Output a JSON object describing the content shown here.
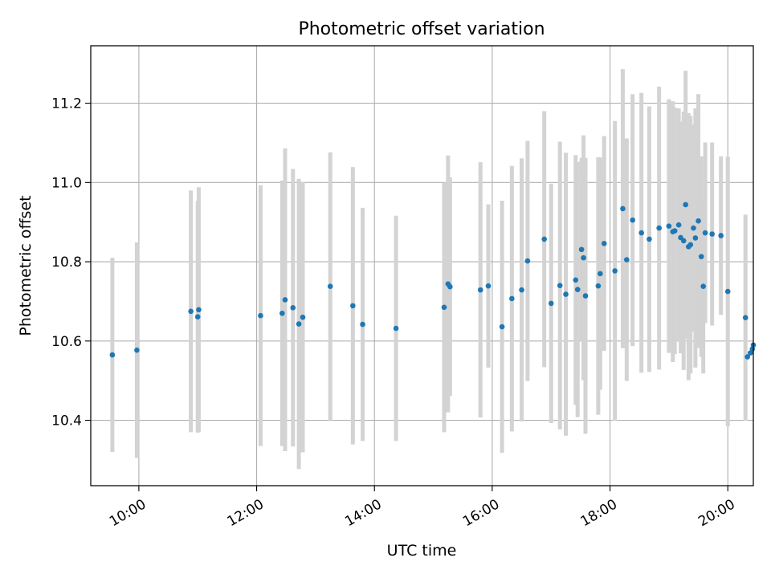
{
  "chart_data": {
    "type": "scatter",
    "title": "Photometric offset variation",
    "xlabel": "UTC time",
    "ylabel": "Photometric offset",
    "xlim": [
      "09:11",
      "20:26"
    ],
    "ylim": [
      10.235,
      11.345
    ],
    "grid": true,
    "x_ticks": [
      "10:00",
      "12:00",
      "14:00",
      "16:00",
      "18:00",
      "20:00"
    ],
    "y_ticks": [
      "10.4",
      "10.6",
      "10.8",
      "11.0",
      "11.2"
    ],
    "colors": {
      "points": "#1f77b4",
      "errorbars": "#d3d3d3",
      "grid": "#b0b0b0"
    },
    "series": [
      {
        "x": [
          "09:33",
          "09:58",
          "10:53",
          "11:00",
          "11:01",
          "12:04",
          "12:26",
          "12:29",
          "12:37",
          "12:43",
          "12:47",
          "13:15",
          "13:38",
          "13:48",
          "14:22",
          "15:11",
          "15:15",
          "15:17",
          "15:48",
          "15:56",
          "16:10",
          "16:20",
          "16:30",
          "16:36",
          "16:53",
          "17:00",
          "17:09",
          "17:15",
          "17:25",
          "17:27",
          "17:31",
          "17:33",
          "17:35",
          "17:48",
          "17:50",
          "17:54",
          "18:05",
          "18:13",
          "18:17",
          "18:23",
          "18:32",
          "18:40",
          "18:50",
          "19:00",
          "19:04",
          "19:06",
          "19:10",
          "19:12",
          "19:15",
          "19:17",
          "19:20",
          "19:22",
          "19:25",
          "19:27",
          "19:30",
          "19:33",
          "19:35",
          "19:37",
          "19:44",
          "19:53",
          "20:00",
          "20:18",
          "20:20",
          "20:23",
          "20:25",
          "20:26"
        ],
        "y": [
          10.565,
          10.577,
          10.675,
          10.661,
          10.679,
          10.664,
          10.67,
          10.704,
          10.684,
          10.643,
          10.66,
          10.738,
          10.689,
          10.642,
          10.632,
          10.685,
          10.744,
          10.737,
          10.729,
          10.739,
          10.636,
          10.707,
          10.729,
          10.802,
          10.857,
          10.695,
          10.74,
          10.718,
          10.754,
          10.73,
          10.831,
          10.81,
          10.714,
          10.739,
          10.77,
          10.846,
          10.777,
          10.934,
          10.805,
          10.905,
          10.873,
          10.857,
          10.885,
          10.89,
          10.876,
          10.878,
          10.893,
          10.861,
          10.853,
          10.944,
          10.838,
          10.843,
          10.885,
          10.86,
          10.903,
          10.813,
          10.738,
          10.873,
          10.87,
          10.866,
          10.725,
          10.659,
          10.56,
          10.57,
          10.58,
          10.59
        ],
        "err": [
          0.245,
          0.272,
          0.305,
          0.292,
          0.309,
          0.329,
          0.335,
          0.382,
          0.35,
          0.366,
          0.341,
          0.338,
          0.35,
          0.294,
          0.284,
          0.315,
          0.324,
          0.276,
          0.322,
          0.206,
          0.318,
          0.335,
          0.332,
          0.303,
          0.323,
          0.302,
          0.363,
          0.357,
          0.315,
          0.322,
          0.231,
          0.309,
          0.348,
          0.325,
          0.293,
          0.271,
          0.378,
          0.352,
          0.306,
          0.318,
          0.353,
          0.335,
          0.357,
          0.32,
          0.329,
          0.311,
          0.294,
          0.292,
          0.326,
          0.338,
          0.337,
          0.325,
          0.261,
          0.327,
          0.32,
          0.253,
          0.22,
          0.228,
          0.231,
          0.2,
          0.34,
          0.26,
          0.0,
          0.0,
          0.0,
          0.0
        ]
      }
    ]
  }
}
